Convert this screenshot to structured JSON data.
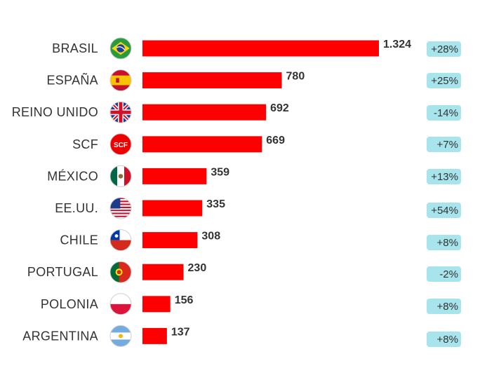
{
  "chart_data": {
    "type": "bar",
    "orientation": "horizontal",
    "title": "",
    "xlabel": "",
    "ylabel": "",
    "grid": false,
    "bar_color": "#ff0000",
    "change_badge_color": "#a8e4ec",
    "categories": [
      "BRASIL",
      "ESPAÑA",
      "REINO UNIDO",
      "SCF",
      "MÉXICO",
      "EE.UU.",
      "CHILE",
      "PORTUGAL",
      "POLONIA",
      "ARGENTINA"
    ],
    "values": [
      1324,
      780,
      692,
      669,
      359,
      335,
      308,
      230,
      156,
      137
    ],
    "value_labels": [
      "1.324",
      "780",
      "692",
      "669",
      "359",
      "335",
      "308",
      "230",
      "156",
      "137"
    ],
    "changes": [
      "+28%",
      "+25%",
      "-14%",
      "+7%",
      "+13%",
      "+54%",
      "+8%",
      "-2%",
      "+8%",
      "+8%"
    ],
    "icons": [
      "brazil-flag-icon",
      "spain-flag-icon",
      "uk-flag-icon",
      "scf-logo-icon",
      "mexico-flag-icon",
      "usa-flag-icon",
      "chile-flag-icon",
      "portugal-flag-icon",
      "poland-flag-icon",
      "argentina-flag-icon"
    ],
    "scf_icon_text": "SCF"
  }
}
